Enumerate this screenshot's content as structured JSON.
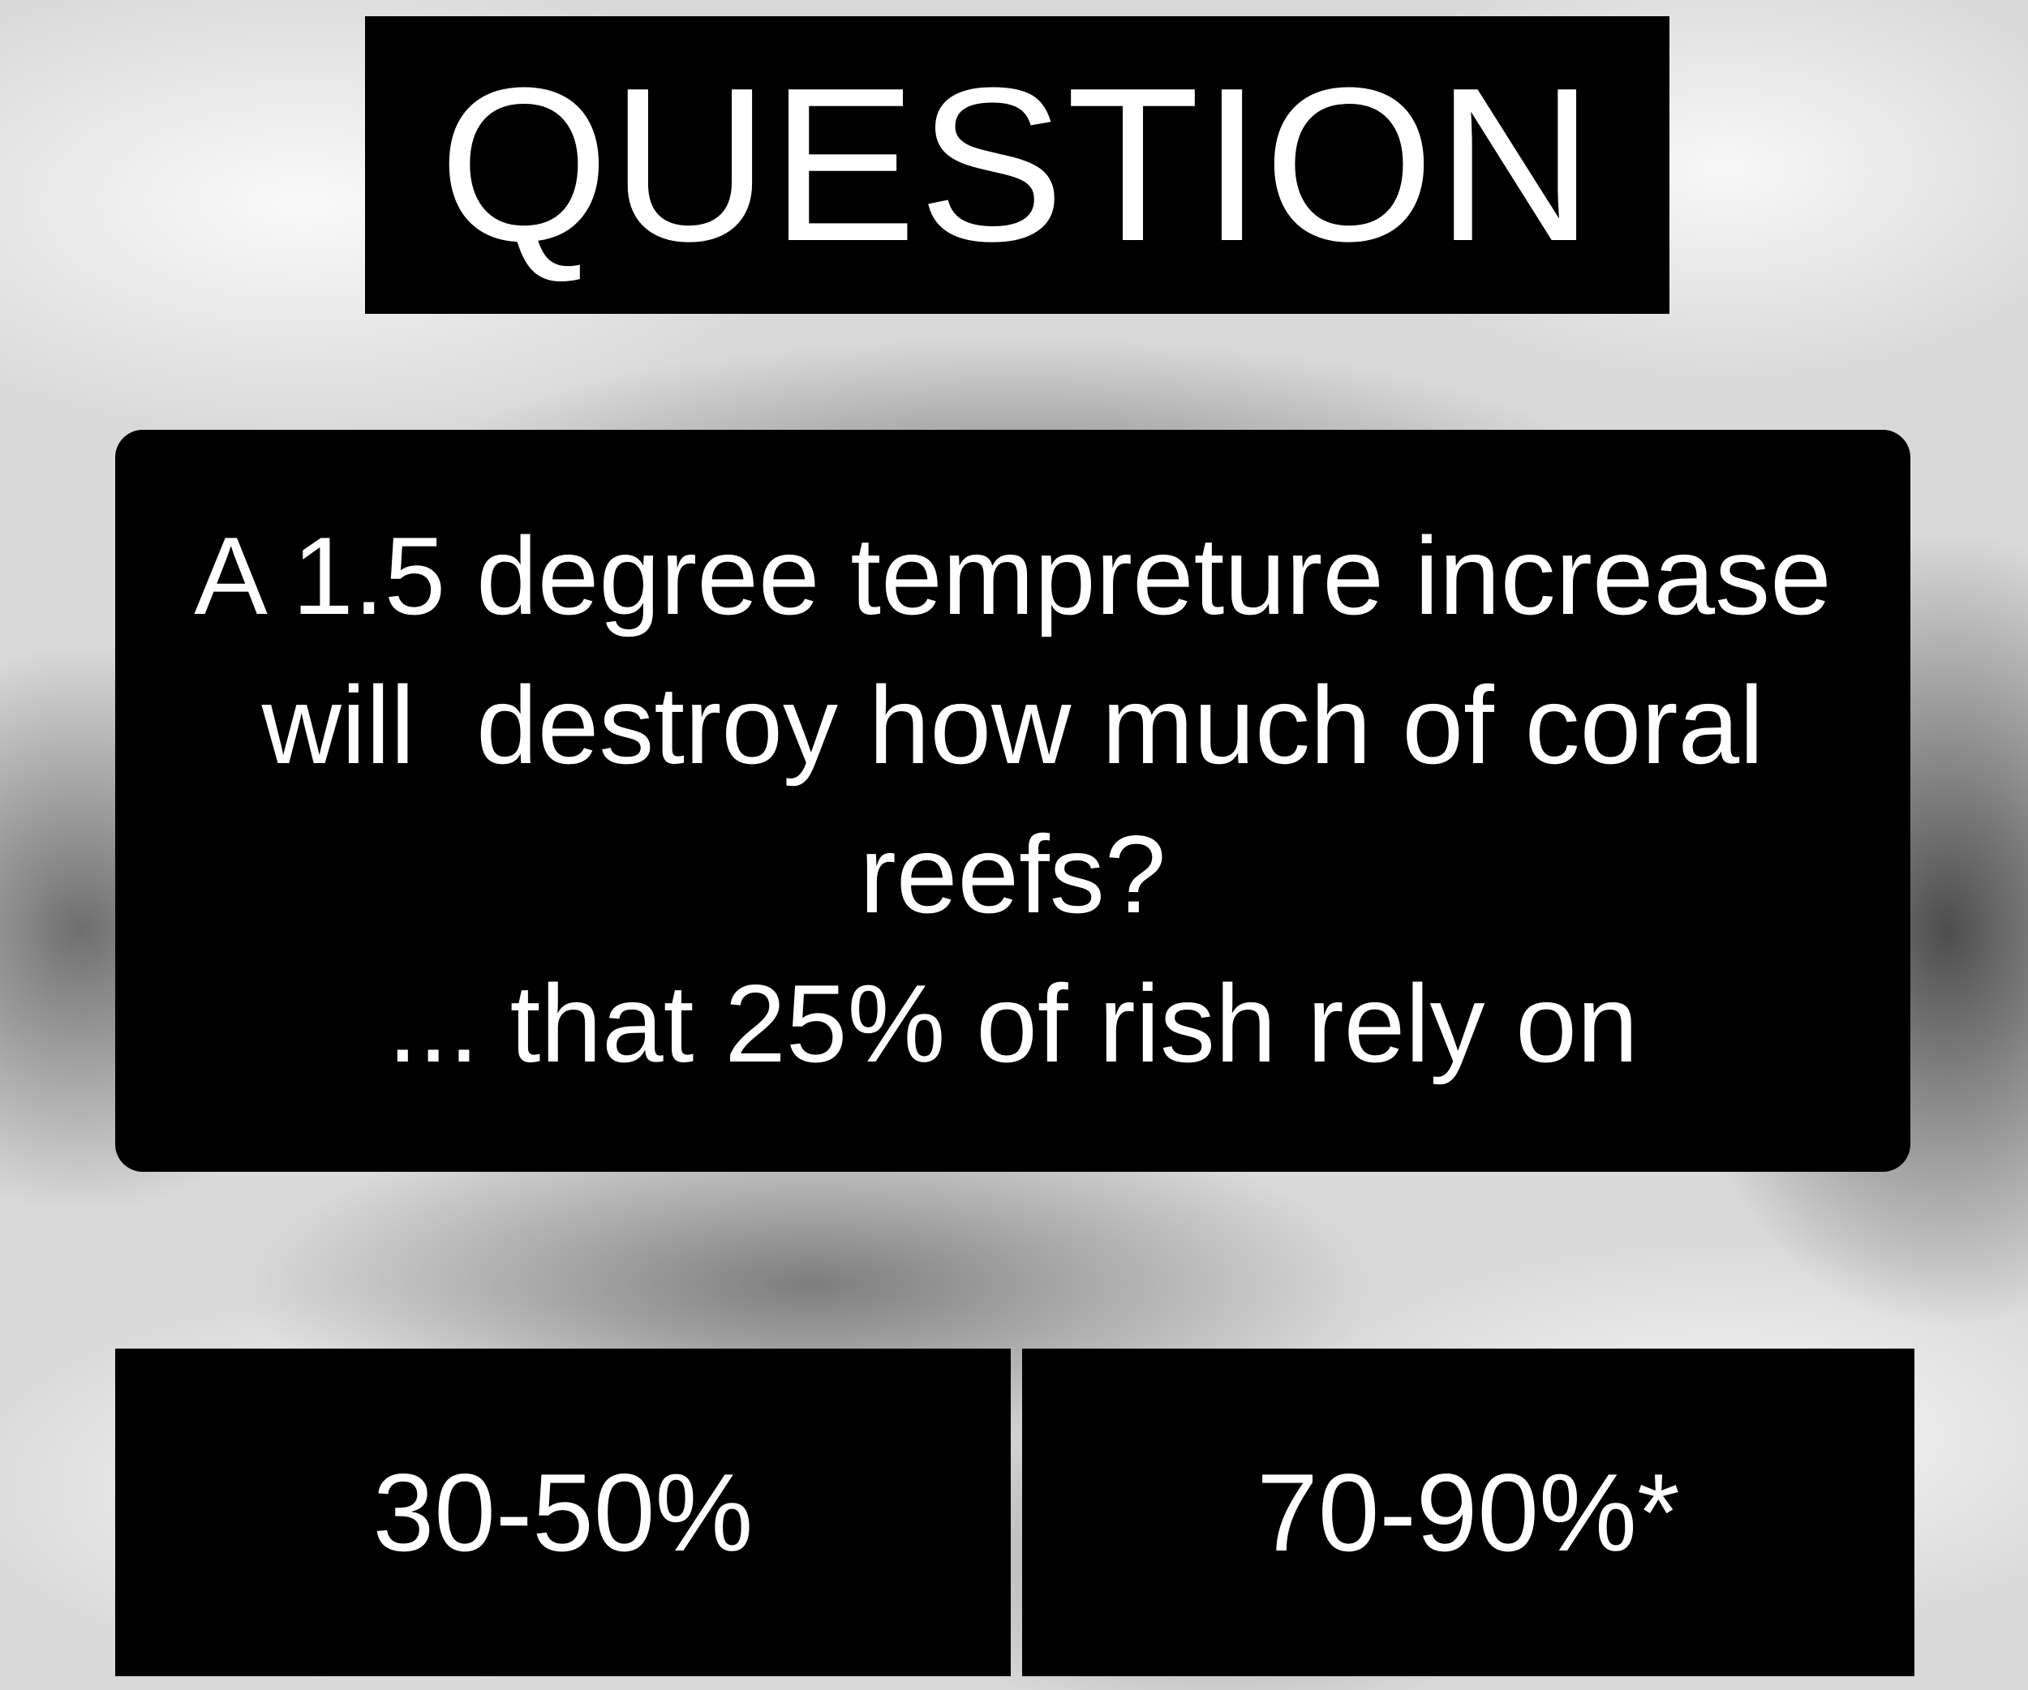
{
  "title": "QUESTION",
  "question": {
    "lines": [
      "A 1.5 degree tempreture increase",
      "will  destroy how much of coral",
      "reefs?",
      "... that 25% of rish rely on"
    ]
  },
  "answers": [
    {
      "label": "30-50%"
    },
    {
      "label": "70-90%*"
    }
  ]
}
